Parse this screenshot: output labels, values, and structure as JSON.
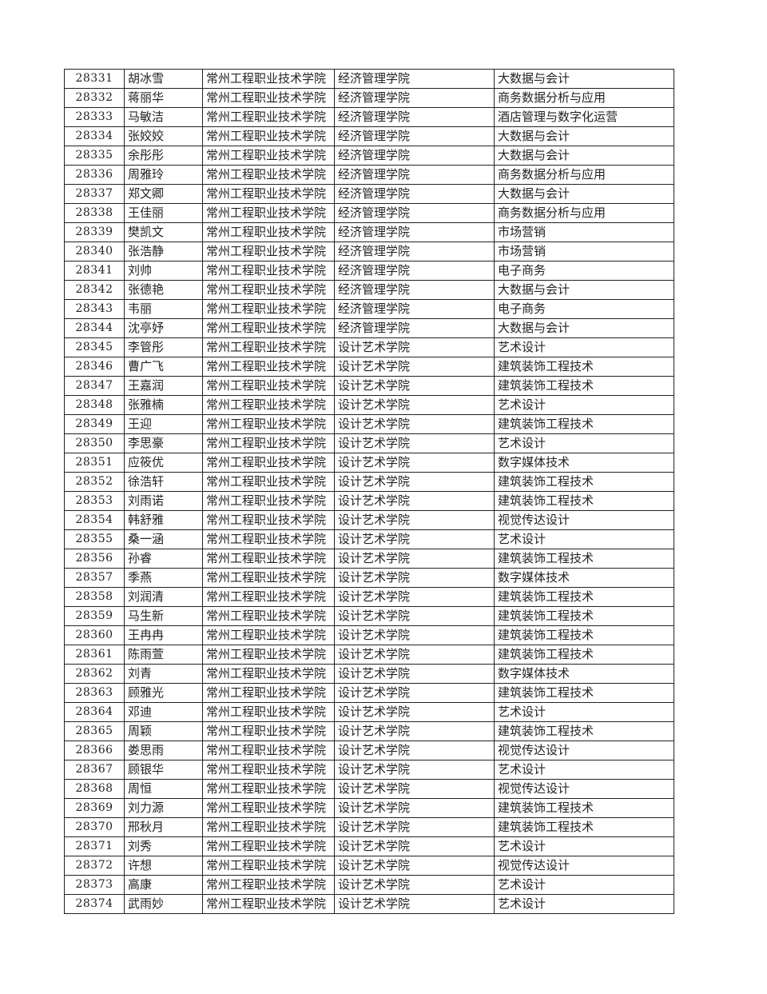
{
  "school": "常州工程职业技术学院",
  "rows": [
    [
      "28331",
      "胡冰雪",
      "经济管理学院",
      "大数据与会计"
    ],
    [
      "28332",
      "蒋丽华",
      "经济管理学院",
      "商务数据分析与应用"
    ],
    [
      "28333",
      "马敏洁",
      "经济管理学院",
      "酒店管理与数字化运营"
    ],
    [
      "28334",
      "张姣姣",
      "经济管理学院",
      "大数据与会计"
    ],
    [
      "28335",
      "余彤彤",
      "经济管理学院",
      "大数据与会计"
    ],
    [
      "28336",
      "周雅玲",
      "经济管理学院",
      "商务数据分析与应用"
    ],
    [
      "28337",
      "郑文卿",
      "经济管理学院",
      "大数据与会计"
    ],
    [
      "28338",
      "王佳丽",
      "经济管理学院",
      "商务数据分析与应用"
    ],
    [
      "28339",
      "樊凯文",
      "经济管理学院",
      "市场营销"
    ],
    [
      "28340",
      "张浩静",
      "经济管理学院",
      "市场营销"
    ],
    [
      "28341",
      "刘帅",
      "经济管理学院",
      "电子商务"
    ],
    [
      "28342",
      "张德艳",
      "经济管理学院",
      "大数据与会计"
    ],
    [
      "28343",
      "韦丽",
      "经济管理学院",
      "电子商务"
    ],
    [
      "28344",
      "沈亭妤",
      "经济管理学院",
      "大数据与会计"
    ],
    [
      "28345",
      "李管彤",
      "设计艺术学院",
      "艺术设计"
    ],
    [
      "28346",
      "曹广飞",
      "设计艺术学院",
      "建筑装饰工程技术"
    ],
    [
      "28347",
      "王嘉润",
      "设计艺术学院",
      "建筑装饰工程技术"
    ],
    [
      "28348",
      "张雅楠",
      "设计艺术学院",
      "艺术设计"
    ],
    [
      "28349",
      "王迎",
      "设计艺术学院",
      "建筑装饰工程技术"
    ],
    [
      "28350",
      "李思豪",
      "设计艺术学院",
      "艺术设计"
    ],
    [
      "28351",
      "应筱优",
      "设计艺术学院",
      "数字媒体技术"
    ],
    [
      "28352",
      "徐浩轩",
      "设计艺术学院",
      "建筑装饰工程技术"
    ],
    [
      "28353",
      "刘雨诺",
      "设计艺术学院",
      "建筑装饰工程技术"
    ],
    [
      "28354",
      "韩舒雅",
      "设计艺术学院",
      "视觉传达设计"
    ],
    [
      "28355",
      "桑一涵",
      "设计艺术学院",
      "艺术设计"
    ],
    [
      "28356",
      "孙睿",
      "设计艺术学院",
      "建筑装饰工程技术"
    ],
    [
      "28357",
      "季燕",
      "设计艺术学院",
      "数字媒体技术"
    ],
    [
      "28358",
      "刘润清",
      "设计艺术学院",
      "建筑装饰工程技术"
    ],
    [
      "28359",
      "马生新",
      "设计艺术学院",
      "建筑装饰工程技术"
    ],
    [
      "28360",
      "王冉冉",
      "设计艺术学院",
      "建筑装饰工程技术"
    ],
    [
      "28361",
      "陈雨萱",
      "设计艺术学院",
      "建筑装饰工程技术"
    ],
    [
      "28362",
      "刘青",
      "设计艺术学院",
      "数字媒体技术"
    ],
    [
      "28363",
      "顾雅光",
      "设计艺术学院",
      "建筑装饰工程技术"
    ],
    [
      "28364",
      "邓迪",
      "设计艺术学院",
      "艺术设计"
    ],
    [
      "28365",
      "周颖",
      "设计艺术学院",
      "建筑装饰工程技术"
    ],
    [
      "28366",
      "娄思雨",
      "设计艺术学院",
      "视觉传达设计"
    ],
    [
      "28367",
      "顾银华",
      "设计艺术学院",
      "艺术设计"
    ],
    [
      "28368",
      "周恒",
      "设计艺术学院",
      "视觉传达设计"
    ],
    [
      "28369",
      "刘力源",
      "设计艺术学院",
      "建筑装饰工程技术"
    ],
    [
      "28370",
      "邢秋月",
      "设计艺术学院",
      "建筑装饰工程技术"
    ],
    [
      "28371",
      "刘秀",
      "设计艺术学院",
      "艺术设计"
    ],
    [
      "28372",
      "许想",
      "设计艺术学院",
      "视觉传达设计"
    ],
    [
      "28373",
      "高康",
      "设计艺术学院",
      "艺术设计"
    ],
    [
      "28374",
      "武雨妙",
      "设计艺术学院",
      "艺术设计"
    ]
  ]
}
